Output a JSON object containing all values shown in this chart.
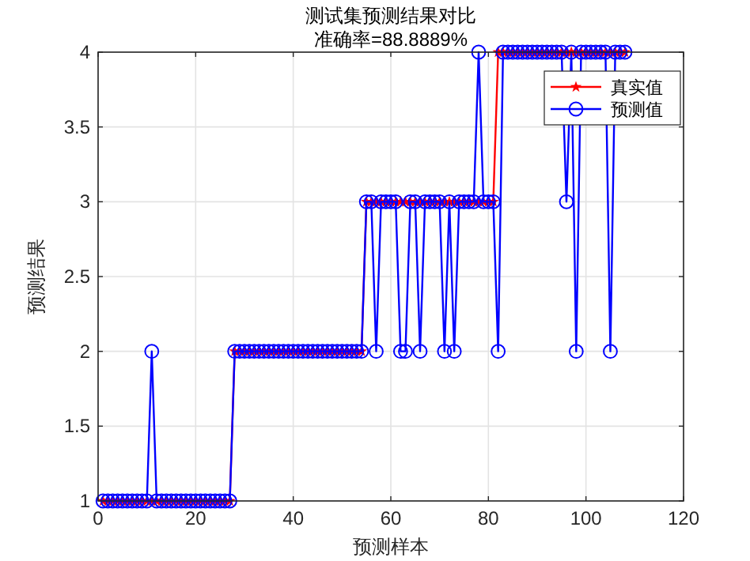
{
  "chart_data": {
    "type": "line",
    "title": "测试集预测结果对比",
    "subtitle": "准确率=88.8889%",
    "xlabel": "预测样本",
    "ylabel": "预测结果",
    "x": [
      1,
      2,
      3,
      4,
      5,
      6,
      7,
      8,
      9,
      10,
      11,
      12,
      13,
      14,
      15,
      16,
      17,
      18,
      19,
      20,
      21,
      22,
      23,
      24,
      25,
      26,
      27,
      28,
      29,
      30,
      31,
      32,
      33,
      34,
      35,
      36,
      37,
      38,
      39,
      40,
      41,
      42,
      43,
      44,
      45,
      46,
      47,
      48,
      49,
      50,
      51,
      52,
      53,
      54,
      55,
      56,
      57,
      58,
      59,
      60,
      61,
      62,
      63,
      64,
      65,
      66,
      67,
      68,
      69,
      70,
      71,
      72,
      73,
      74,
      75,
      76,
      77,
      78,
      79,
      80,
      81,
      82,
      83,
      84,
      85,
      86,
      87,
      88,
      89,
      90,
      91,
      92,
      93,
      94,
      95,
      96,
      97,
      98,
      99,
      100,
      101,
      102,
      103,
      104,
      105,
      106,
      107,
      108
    ],
    "series": [
      {
        "name": "真实值",
        "color": "#ff0000",
        "marker": "star",
        "values": [
          1,
          1,
          1,
          1,
          1,
          1,
          1,
          1,
          1,
          1,
          1,
          1,
          1,
          1,
          1,
          1,
          1,
          1,
          1,
          1,
          1,
          1,
          1,
          1,
          1,
          1,
          1,
          2,
          2,
          2,
          2,
          2,
          2,
          2,
          2,
          2,
          2,
          2,
          2,
          2,
          2,
          2,
          2,
          2,
          2,
          2,
          2,
          2,
          2,
          2,
          2,
          2,
          2,
          2,
          3,
          3,
          3,
          3,
          3,
          3,
          3,
          3,
          3,
          3,
          3,
          3,
          3,
          3,
          3,
          3,
          3,
          3,
          3,
          3,
          3,
          3,
          3,
          3,
          3,
          3,
          3,
          4,
          4,
          4,
          4,
          4,
          4,
          4,
          4,
          4,
          4,
          4,
          4,
          4,
          4,
          4,
          4,
          4,
          4,
          4,
          4,
          4,
          4,
          4,
          4,
          4,
          4,
          4
        ]
      },
      {
        "name": "预测值",
        "color": "#0000ff",
        "marker": "circle",
        "values": [
          1,
          1,
          1,
          1,
          1,
          1,
          1,
          1,
          1,
          1,
          2,
          1,
          1,
          1,
          1,
          1,
          1,
          1,
          1,
          1,
          1,
          1,
          1,
          1,
          1,
          1,
          1,
          2,
          2,
          2,
          2,
          2,
          2,
          2,
          2,
          2,
          2,
          2,
          2,
          2,
          2,
          2,
          2,
          2,
          2,
          2,
          2,
          2,
          2,
          2,
          2,
          2,
          2,
          2,
          3,
          3,
          2,
          3,
          3,
          3,
          3,
          2,
          2,
          3,
          3,
          2,
          3,
          3,
          3,
          3,
          2,
          3,
          2,
          3,
          3,
          3,
          3,
          4,
          3,
          3,
          3,
          2,
          4,
          4,
          4,
          4,
          4,
          4,
          4,
          4,
          4,
          4,
          4,
          4,
          4,
          3,
          4,
          2,
          4,
          4,
          4,
          4,
          4,
          4,
          2,
          4,
          4,
          4
        ]
      }
    ],
    "xlim": [
      0,
      120
    ],
    "xticks": [
      0,
      20,
      40,
      60,
      80,
      100,
      120
    ],
    "ylim": [
      1,
      4
    ],
    "yticks": [
      1,
      1.5,
      2,
      2.5,
      3,
      3.5,
      4
    ],
    "grid": true,
    "legend": "top right",
    "line_style": "solid"
  }
}
